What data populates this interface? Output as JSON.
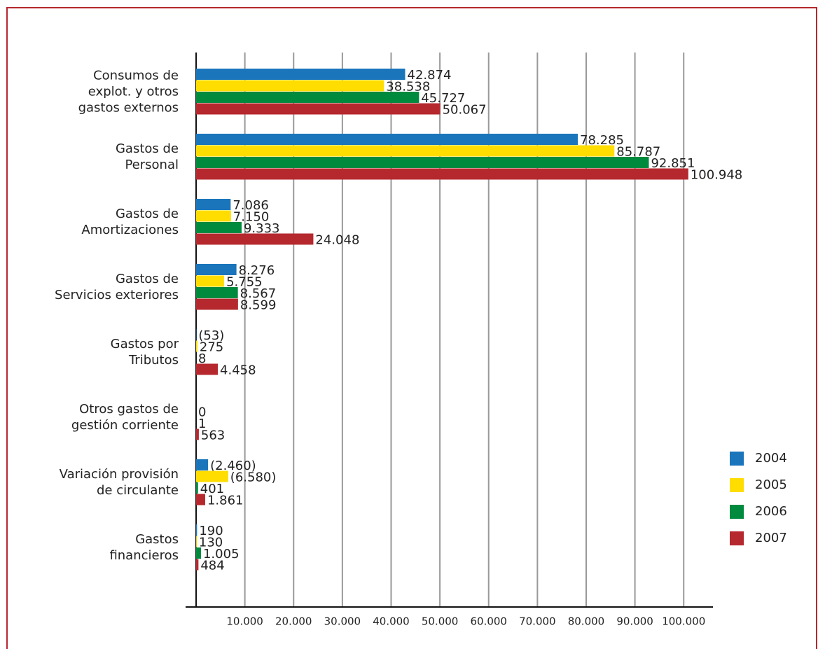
{
  "chart_data": {
    "type": "bar",
    "orientation": "horizontal",
    "categories": [
      "Consumos de\nexplot. y otros\ngastos externos",
      "Gastos de\nPersonal",
      "Gastos de\nAmortizaciones",
      "Gastos de\nServicios exteriores",
      "Gastos por\nTributos",
      "Otros gastos de\ngestión corriente",
      "Variación provisión\nde circulante",
      "Gastos\nfinancieros"
    ],
    "series": [
      {
        "name": "2004",
        "color": "#1a75bb",
        "values": [
          42874,
          78285,
          7086,
          8276,
          53,
          null,
          2460,
          190
        ],
        "value_labels": [
          "42.874",
          "78.285",
          "7.086",
          "8.276",
          "(53)",
          null,
          "(2.460)",
          "190"
        ]
      },
      {
        "name": "2005",
        "color": "#ffdd00",
        "values": [
          38538,
          85787,
          7150,
          5755,
          275,
          0,
          6580,
          130
        ],
        "value_labels": [
          "38.538",
          "85.787",
          "7.150",
          "5.755",
          "275",
          "0",
          "(6.580)",
          "130"
        ]
      },
      {
        "name": "2006",
        "color": "#008a3e",
        "values": [
          45727,
          92851,
          9333,
          8567,
          8,
          1,
          401,
          1005
        ],
        "value_labels": [
          "45.727",
          "92.851",
          "9.333",
          "8.567",
          "8",
          "1",
          "401",
          "1.005"
        ]
      },
      {
        "name": "2007",
        "color": "#b5282e",
        "values": [
          50067,
          100948,
          24048,
          8599,
          4458,
          563,
          1861,
          484
        ],
        "value_labels": [
          "50.067",
          "100.948",
          "24.048",
          "8.599",
          "4.458",
          "563",
          "1.861",
          "484"
        ]
      }
    ],
    "xlim": [
      0,
      106000
    ],
    "xticks": [
      {
        "value": 10000,
        "label": "10.000"
      },
      {
        "value": 20000,
        "label": "20.000"
      },
      {
        "value": 30000,
        "label": "30.000"
      },
      {
        "value": 40000,
        "label": "40.000"
      },
      {
        "value": 50000,
        "label": "50.000"
      },
      {
        "value": 60000,
        "label": "60.000"
      },
      {
        "value": 70000,
        "label": "70.000"
      },
      {
        "value": 80000,
        "label": "80.000"
      },
      {
        "value": 90000,
        "label": "90.000"
      },
      {
        "value": 100000,
        "label": "100.000"
      }
    ],
    "grid": true,
    "legend": "right"
  }
}
